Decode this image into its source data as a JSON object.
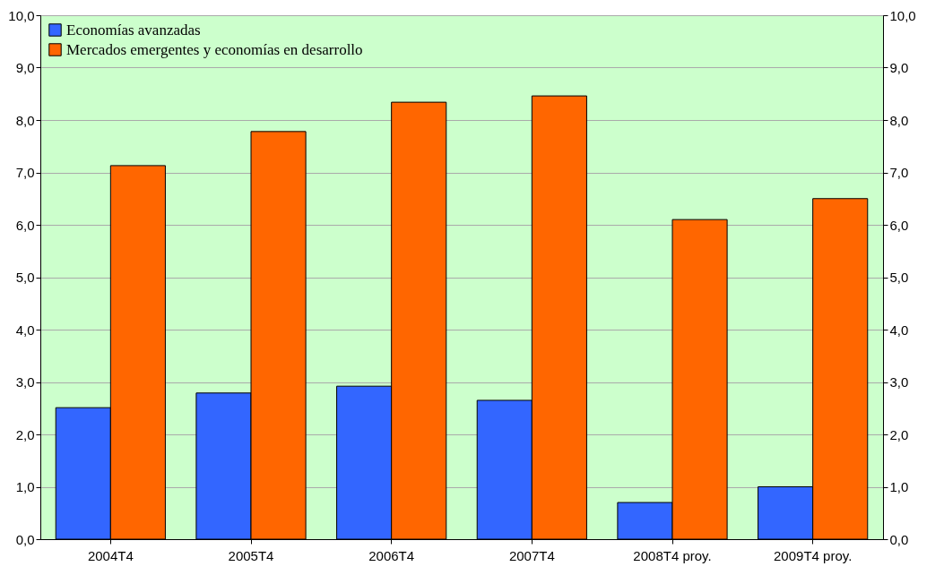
{
  "chart_data": {
    "type": "bar",
    "categories": [
      "2004T4",
      "2005T4",
      "2006T4",
      "2007T4",
      "2008T4 proy.",
      "2009T4 proy."
    ],
    "series": [
      {
        "name": "Economías avanzadas",
        "color": "#3366ff",
        "values": [
          2.51,
          2.79,
          2.92,
          2.65,
          0.7,
          1.0
        ]
      },
      {
        "name": "Mercados emergentes y economías en desarrollo",
        "color": "#ff6600",
        "values": [
          7.13,
          7.78,
          8.34,
          8.46,
          6.1,
          6.5
        ]
      }
    ],
    "ylim": [
      0,
      10
    ],
    "yticks": [
      {
        "value": 0,
        "label": "0,0"
      },
      {
        "value": 1,
        "label": "1,0"
      },
      {
        "value": 2,
        "label": "2,0"
      },
      {
        "value": 3,
        "label": "3,0"
      },
      {
        "value": 4,
        "label": "4,0"
      },
      {
        "value": 5,
        "label": "5,0"
      },
      {
        "value": 6,
        "label": "6,0"
      },
      {
        "value": 7,
        "label": "7,0"
      },
      {
        "value": 8,
        "label": "8,0"
      },
      {
        "value": 9,
        "label": "9,0"
      },
      {
        "value": 10,
        "label": "10,0"
      }
    ],
    "y2lim": [
      0,
      10
    ],
    "y2ticks": [
      {
        "value": 0,
        "label": "0,0"
      },
      {
        "value": 1,
        "label": "1,0"
      },
      {
        "value": 2,
        "label": "2,0"
      },
      {
        "value": 3,
        "label": "3,0"
      },
      {
        "value": 4,
        "label": "4,0"
      },
      {
        "value": 5,
        "label": "5,0"
      },
      {
        "value": 6,
        "label": "6,0"
      },
      {
        "value": 7,
        "label": "7,0"
      },
      {
        "value": 8,
        "label": "8,0"
      },
      {
        "value": 9,
        "label": "9,0"
      },
      {
        "value": 10,
        "label": "10,0"
      }
    ],
    "grid": "y",
    "legend": "top left"
  }
}
